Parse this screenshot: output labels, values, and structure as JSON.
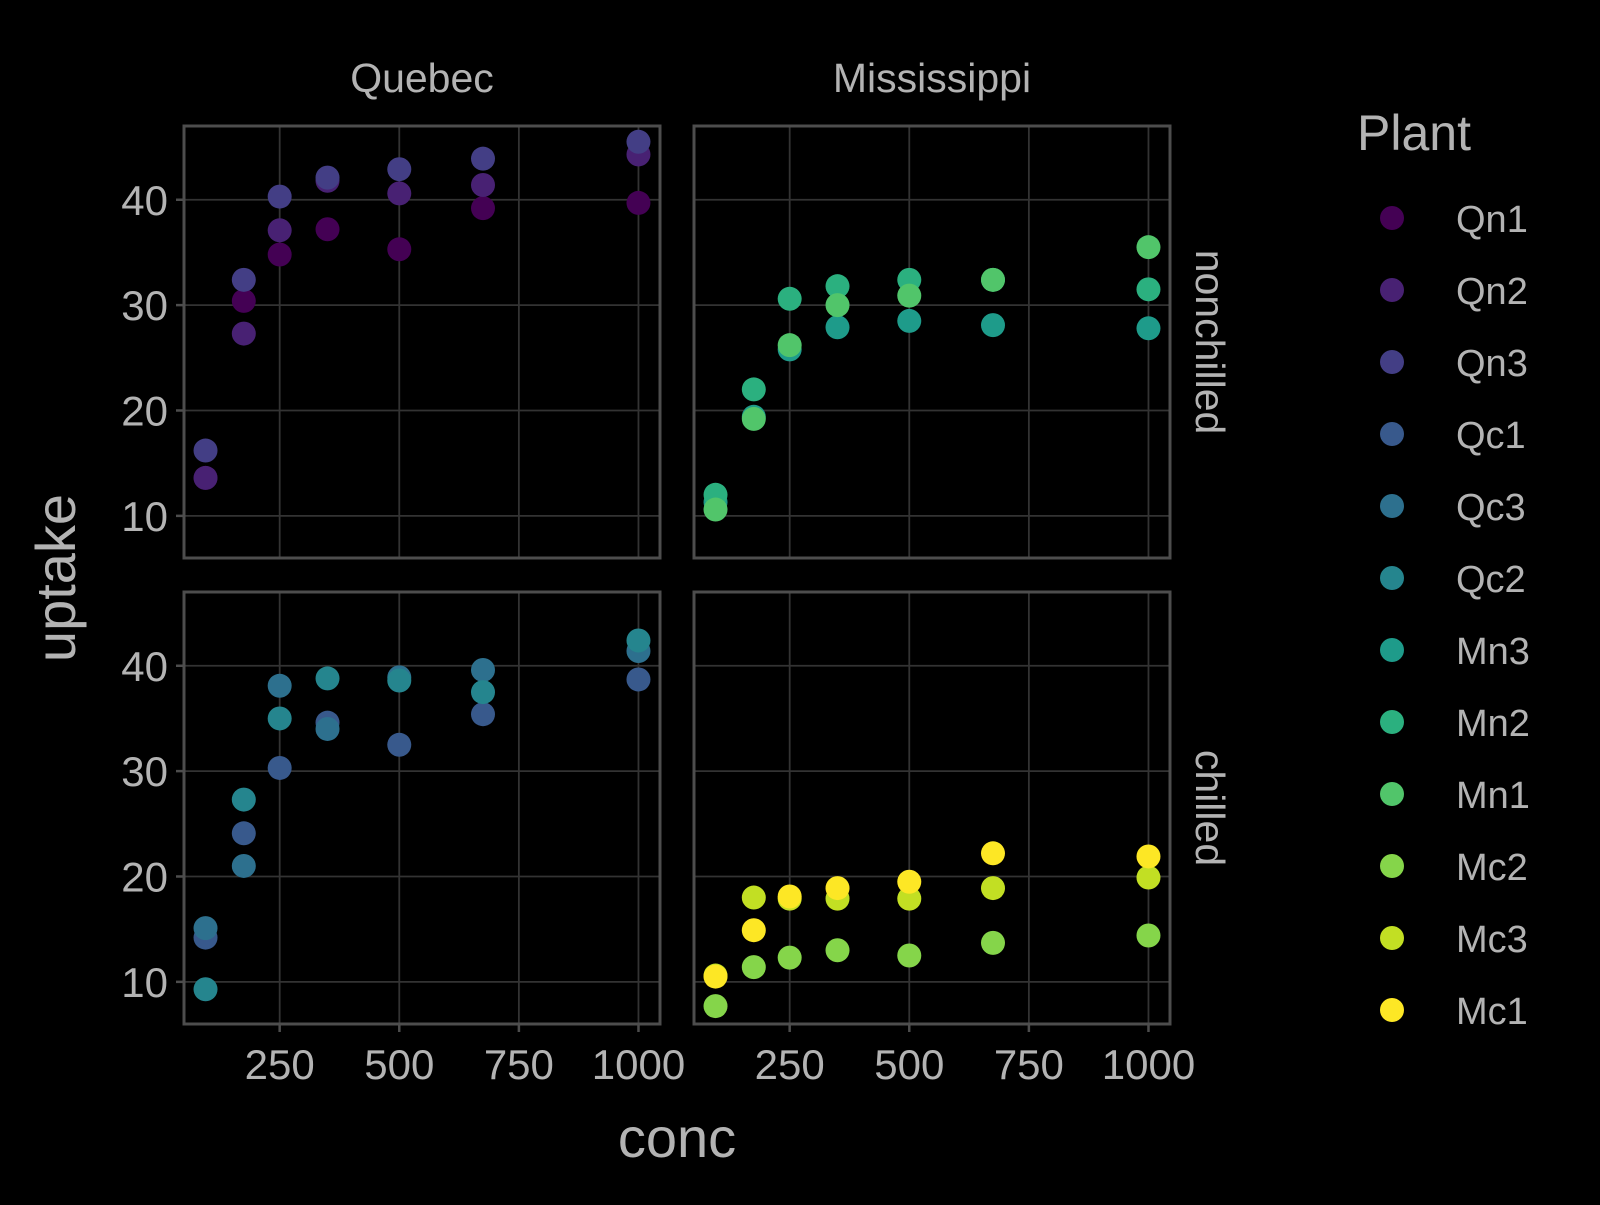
{
  "chart_data": {
    "type": "scatter",
    "facet_cols": [
      "Quebec",
      "Mississippi"
    ],
    "facet_rows": [
      "nonchilled",
      "chilled"
    ],
    "xlabel": "conc",
    "ylabel": "uptake",
    "xlim": [
      50,
      1045
    ],
    "ylim": [
      6,
      47
    ],
    "xticks": [
      250,
      500,
      750,
      1000
    ],
    "yticks": [
      10,
      20,
      30,
      40
    ],
    "grid": true,
    "legend": {
      "title": "Plant",
      "position": "right",
      "entries": [
        "Qn1",
        "Qn2",
        "Qn3",
        "Qc1",
        "Qc3",
        "Qc2",
        "Mn3",
        "Mn2",
        "Mn1",
        "Mc2",
        "Mc3",
        "Mc1"
      ]
    },
    "colors": {
      "Qn1": "#440154",
      "Qn2": "#482173",
      "Qn3": "#433E85",
      "Qc1": "#38598C",
      "Qc3": "#2D708E",
      "Qc2": "#25858E",
      "Mn3": "#1E9B8A",
      "Mn2": "#2BB07F",
      "Mn1": "#51C56A",
      "Mc2": "#85D54A",
      "Mc3": "#C2DF23",
      "Mc1": "#FDE725"
    },
    "series": [
      {
        "name": "Qn1",
        "type": "Quebec",
        "treatment": "nonchilled",
        "x": [
          95,
          175,
          250,
          350,
          500,
          675,
          1000
        ],
        "y": [
          13.6,
          30.4,
          34.8,
          37.2,
          35.3,
          39.2,
          39.7
        ]
      },
      {
        "name": "Qn2",
        "type": "Quebec",
        "treatment": "nonchilled",
        "x": [
          95,
          175,
          250,
          350,
          500,
          675,
          1000
        ],
        "y": [
          13.6,
          27.3,
          37.1,
          41.8,
          40.6,
          41.4,
          44.3
        ]
      },
      {
        "name": "Qn3",
        "type": "Quebec",
        "treatment": "nonchilled",
        "x": [
          95,
          175,
          250,
          350,
          500,
          675,
          1000
        ],
        "y": [
          16.2,
          32.4,
          40.3,
          42.1,
          42.9,
          43.9,
          45.5
        ]
      },
      {
        "name": "Qc1",
        "type": "Quebec",
        "treatment": "chilled",
        "x": [
          95,
          175,
          250,
          350,
          500,
          675,
          1000
        ],
        "y": [
          14.2,
          24.1,
          30.3,
          34.6,
          32.5,
          35.4,
          38.7
        ]
      },
      {
        "name": "Qc3",
        "type": "Quebec",
        "treatment": "chilled",
        "x": [
          95,
          175,
          250,
          350,
          500,
          675,
          1000
        ],
        "y": [
          15.1,
          21.0,
          38.1,
          34.0,
          38.9,
          39.6,
          41.4
        ]
      },
      {
        "name": "Qc2",
        "type": "Quebec",
        "treatment": "chilled",
        "x": [
          95,
          175,
          250,
          350,
          500,
          675,
          1000
        ],
        "y": [
          9.3,
          27.3,
          35.0,
          38.8,
          38.6,
          37.5,
          42.4
        ]
      },
      {
        "name": "Mn3",
        "type": "Mississippi",
        "treatment": "nonchilled",
        "x": [
          95,
          175,
          250,
          350,
          500,
          675,
          1000
        ],
        "y": [
          11.3,
          19.4,
          25.8,
          27.9,
          28.5,
          28.1,
          27.8
        ]
      },
      {
        "name": "Mn2",
        "type": "Mississippi",
        "treatment": "nonchilled",
        "x": [
          95,
          175,
          250,
          350,
          500,
          675,
          1000
        ],
        "y": [
          12.0,
          22.0,
          30.6,
          31.8,
          32.4,
          32.4,
          31.5
        ]
      },
      {
        "name": "Mn1",
        "type": "Mississippi",
        "treatment": "nonchilled",
        "x": [
          95,
          175,
          250,
          350,
          500,
          675,
          1000
        ],
        "y": [
          10.6,
          19.2,
          26.2,
          30.0,
          30.9,
          32.4,
          35.5
        ]
      },
      {
        "name": "Mc2",
        "type": "Mississippi",
        "treatment": "chilled",
        "x": [
          95,
          175,
          250,
          350,
          500,
          675,
          1000
        ],
        "y": [
          7.7,
          11.4,
          12.3,
          13.0,
          12.5,
          13.7,
          14.4
        ]
      },
      {
        "name": "Mc3",
        "type": "Mississippi",
        "treatment": "chilled",
        "x": [
          95,
          175,
          250,
          350,
          500,
          675,
          1000
        ],
        "y": [
          10.6,
          18.0,
          17.9,
          17.9,
          17.9,
          18.9,
          19.9
        ]
      },
      {
        "name": "Mc1",
        "type": "Mississippi",
        "treatment": "chilled",
        "x": [
          95,
          175,
          250,
          350,
          500,
          675,
          1000
        ],
        "y": [
          10.5,
          14.9,
          18.1,
          18.9,
          19.5,
          22.2,
          21.9
        ]
      }
    ]
  }
}
